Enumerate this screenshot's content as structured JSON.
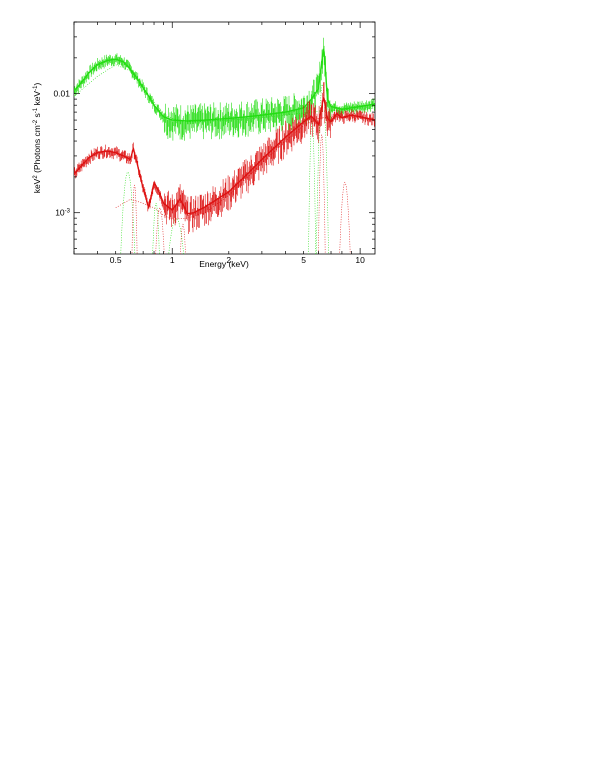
{
  "chart_data": {
    "type": "line",
    "xlabel": "Energy (keV)",
    "ylabel_parts": {
      "main": "keV",
      "main_sup": "2",
      "rest": " (Photons cm",
      "rest_sup": "-2",
      "tail": " s",
      "tail_sup": "-1",
      "end": " keV",
      "end_sup": "-1",
      "close": ")"
    },
    "x_scale": "log",
    "y_scale": "log",
    "xlim": [
      0.3,
      12
    ],
    "ylim": [
      0.00045,
      0.04
    ],
    "x_ticks": [
      {
        "value": 0.5,
        "label": "0.5"
      },
      {
        "value": 1,
        "label": "1"
      },
      {
        "value": 2,
        "label": "2"
      },
      {
        "value": 5,
        "label": "5"
      },
      {
        "value": 10,
        "label": "10"
      }
    ],
    "y_ticks": [
      {
        "value": 0.01,
        "label": "0.01",
        "sup": ""
      },
      {
        "value": 0.001,
        "label": "10",
        "sup": "-3"
      }
    ],
    "grid": false,
    "series": [
      {
        "color": "#22dd11",
        "style": "data",
        "x": [
          0.3,
          0.33,
          0.36,
          0.4,
          0.45,
          0.5,
          0.55,
          0.6,
          0.65,
          0.7,
          0.75,
          0.8,
          0.9,
          1.0,
          1.2,
          1.5,
          2.0,
          2.5,
          3.0,
          4.0,
          5.0,
          5.5,
          6.0,
          6.4,
          6.7,
          7.0,
          8.0,
          10.0,
          12.0
        ],
        "y": [
          0.0105,
          0.0125,
          0.015,
          0.0175,
          0.019,
          0.0195,
          0.0185,
          0.016,
          0.0135,
          0.0112,
          0.0095,
          0.008,
          0.0064,
          0.006,
          0.0059,
          0.006,
          0.0062,
          0.0064,
          0.0066,
          0.007,
          0.0076,
          0.009,
          0.011,
          0.025,
          0.009,
          0.0078,
          0.0074,
          0.0078,
          0.0082
        ]
      },
      {
        "color": "#dd1111",
        "style": "data",
        "x": [
          0.3,
          0.33,
          0.36,
          0.4,
          0.45,
          0.5,
          0.55,
          0.6,
          0.62,
          0.65,
          0.7,
          0.75,
          0.8,
          0.85,
          0.9,
          1.0,
          1.1,
          1.15,
          1.2,
          1.3,
          1.5,
          2.0,
          2.5,
          3.0,
          4.0,
          5.0,
          5.5,
          6.0,
          6.4,
          6.7,
          7.0,
          7.5,
          8.0,
          9.0,
          10.0,
          12.0
        ],
        "y": [
          0.0021,
          0.0025,
          0.0029,
          0.0032,
          0.0033,
          0.0032,
          0.003,
          0.0028,
          0.0035,
          0.0026,
          0.0016,
          0.0011,
          0.0018,
          0.0015,
          0.0012,
          0.00105,
          0.0013,
          0.00115,
          0.00098,
          0.001,
          0.00112,
          0.0015,
          0.0021,
          0.0028,
          0.0043,
          0.0058,
          0.0065,
          0.0055,
          0.0095,
          0.0062,
          0.0058,
          0.0068,
          0.0063,
          0.0066,
          0.0064,
          0.006
        ]
      },
      {
        "color": "#22dd11",
        "style": "dotted",
        "x": [
          0.3,
          0.4,
          0.5,
          0.6,
          0.7,
          0.8,
          0.9,
          1.0,
          1.2,
          1.5,
          2.0,
          3.0,
          4.0,
          5.0,
          6.0,
          7.0,
          8.0,
          10.0,
          12.0
        ],
        "y": [
          0.0095,
          0.014,
          0.0175,
          0.0155,
          0.011,
          0.0085,
          0.0068,
          0.0062,
          0.0058,
          0.0059,
          0.006,
          0.0063,
          0.0066,
          0.0069,
          0.0071,
          0.0072,
          0.0073,
          0.0074,
          0.0075
        ]
      },
      {
        "color": "#dd1111",
        "style": "dotted",
        "x": [
          0.5,
          0.6,
          0.7,
          0.8,
          0.9,
          1.0,
          1.2,
          1.5,
          2.0,
          3.0,
          4.0,
          5.0,
          6.0,
          7.0,
          8.0,
          10.0,
          12.0
        ],
        "y": [
          0.0011,
          0.0013,
          0.0012,
          0.0011,
          0.00095,
          0.00088,
          0.0009,
          0.001,
          0.0014,
          0.0026,
          0.004,
          0.0054,
          0.0062,
          0.0064,
          0.0063,
          0.0062,
          0.006
        ]
      }
    ],
    "lines": [
      {
        "color": "#22dd11",
        "center": 0.58,
        "peak": 0.0022,
        "width": 0.05
      },
      {
        "color": "#22dd11",
        "center": 0.82,
        "peak": 0.0012,
        "width": 0.03
      },
      {
        "color": "#22dd11",
        "center": 1.05,
        "peak": 0.0009,
        "width": 0.08
      },
      {
        "color": "#22dd11",
        "center": 5.55,
        "peak": 0.006,
        "width": 0.02
      },
      {
        "color": "#22dd11",
        "center": 6.3,
        "peak": 0.012,
        "width": 0.03
      },
      {
        "color": "#dd1111",
        "center": 0.63,
        "peak": 0.0017,
        "width": 0.02
      },
      {
        "color": "#dd1111",
        "center": 0.86,
        "peak": 0.0011,
        "width": 0.04
      },
      {
        "color": "#dd1111",
        "center": 1.14,
        "peak": 0.0008,
        "width": 0.03
      },
      {
        "color": "#dd1111",
        "center": 6.25,
        "peak": 0.0045,
        "width": 0.02
      },
      {
        "color": "#dd1111",
        "center": 8.3,
        "peak": 0.0018,
        "width": 0.04
      }
    ]
  }
}
